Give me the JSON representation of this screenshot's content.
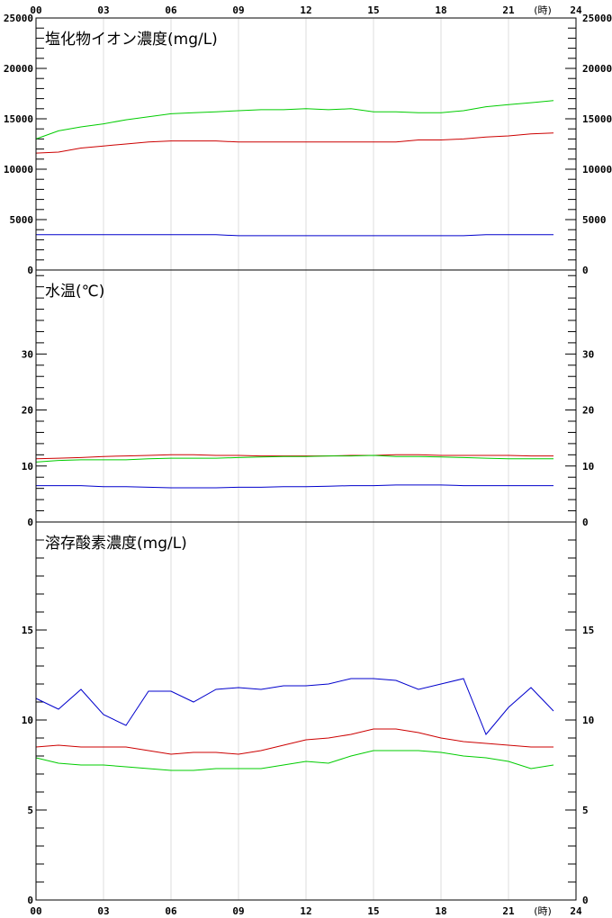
{
  "chart_data": {
    "type": "line",
    "x_ticks": [
      "00",
      "03",
      "06",
      "09",
      "12",
      "15",
      "18",
      "21",
      "24"
    ],
    "x_unit": "(時)",
    "hours": [
      0,
      1,
      2,
      3,
      4,
      5,
      6,
      7,
      8,
      9,
      10,
      11,
      12,
      13,
      14,
      15,
      16,
      17,
      18,
      19,
      20,
      21,
      22,
      23
    ],
    "grid": true,
    "panels": [
      {
        "id": "chloride",
        "title": "塩化物イオン濃度(mg/L)",
        "ylim": [
          0,
          25000
        ],
        "y_ticks": [
          0,
          5000,
          10000,
          15000,
          20000,
          25000
        ],
        "y_tick_labels": [
          "0",
          "5000",
          "10000",
          "15000",
          "20000",
          "25000"
        ],
        "minor_step": 1000,
        "series": [
          {
            "color": "#00cc00",
            "values": [
              13000,
              13800,
              14200,
              14500,
              14900,
              15200,
              15500,
              15600,
              15700,
              15800,
              15900,
              15900,
              16000,
              15900,
              16000,
              15700,
              15700,
              15600,
              15600,
              15800,
              16200,
              16400,
              16600,
              16800
            ]
          },
          {
            "color": "#cc0000",
            "values": [
              11600,
              11700,
              12100,
              12300,
              12500,
              12700,
              12800,
              12800,
              12800,
              12700,
              12700,
              12700,
              12700,
              12700,
              12700,
              12700,
              12700,
              12900,
              12900,
              13000,
              13200,
              13300,
              13500,
              13600
            ]
          },
          {
            "color": "#0000cc",
            "values": [
              3500,
              3500,
              3500,
              3500,
              3500,
              3500,
              3500,
              3500,
              3500,
              3400,
              3400,
              3400,
              3400,
              3400,
              3400,
              3400,
              3400,
              3400,
              3400,
              3400,
              3500,
              3500,
              3500,
              3500
            ]
          }
        ]
      },
      {
        "id": "water-temp",
        "title": "水温(℃)",
        "ylim": [
          0,
          45
        ],
        "y_ticks": [
          0,
          10,
          20,
          30
        ],
        "y_tick_labels": [
          "0",
          "10",
          "20",
          "30"
        ],
        "minor_step": 2,
        "series": [
          {
            "color": "#cc0000",
            "values": [
              11.3,
              11.4,
              11.5,
              11.7,
              11.8,
              11.9,
              12.0,
              12.0,
              11.9,
              11.9,
              11.8,
              11.8,
              11.8,
              11.8,
              11.9,
              11.9,
              12.0,
              12.0,
              11.9,
              11.9,
              11.9,
              11.9,
              11.8,
              11.8
            ]
          },
          {
            "color": "#00cc00",
            "values": [
              10.7,
              11.0,
              11.1,
              11.1,
              11.1,
              11.3,
              11.4,
              11.4,
              11.4,
              11.5,
              11.6,
              11.7,
              11.7,
              11.8,
              11.8,
              11.9,
              11.7,
              11.7,
              11.6,
              11.5,
              11.4,
              11.3,
              11.3,
              11.3
            ]
          },
          {
            "color": "#0000cc",
            "values": [
              6.5,
              6.5,
              6.5,
              6.3,
              6.3,
              6.2,
              6.1,
              6.1,
              6.1,
              6.2,
              6.2,
              6.3,
              6.3,
              6.4,
              6.5,
              6.5,
              6.6,
              6.6,
              6.6,
              6.5,
              6.5,
              6.5,
              6.5,
              6.5
            ]
          }
        ]
      },
      {
        "id": "dissolved-oxygen",
        "title": "溶存酸素濃度(mg/L)",
        "ylim": [
          0,
          21
        ],
        "y_ticks": [
          0,
          5,
          10,
          15
        ],
        "y_tick_labels": [
          "0",
          "5",
          "10",
          "15"
        ],
        "minor_step": 1,
        "series": [
          {
            "color": "#0000cc",
            "values": [
              11.2,
              10.6,
              11.7,
              10.3,
              9.7,
              11.6,
              11.6,
              11.0,
              11.7,
              11.8,
              11.7,
              11.9,
              11.9,
              12.0,
              12.3,
              12.3,
              12.2,
              11.7,
              12.0,
              12.3,
              9.2,
              10.7,
              11.8,
              10.5
            ]
          },
          {
            "color": "#cc0000",
            "values": [
              8.5,
              8.6,
              8.5,
              8.5,
              8.5,
              8.3,
              8.1,
              8.2,
              8.2,
              8.1,
              8.3,
              8.6,
              8.9,
              9.0,
              9.2,
              9.5,
              9.5,
              9.3,
              9.0,
              8.8,
              8.7,
              8.6,
              8.5,
              8.5
            ]
          },
          {
            "color": "#00cc00",
            "values": [
              7.9,
              7.6,
              7.5,
              7.5,
              7.4,
              7.3,
              7.2,
              7.2,
              7.3,
              7.3,
              7.3,
              7.5,
              7.7,
              7.6,
              8.0,
              8.3,
              8.3,
              8.3,
              8.2,
              8.0,
              7.9,
              7.7,
              7.3,
              7.5
            ]
          }
        ]
      }
    ]
  }
}
